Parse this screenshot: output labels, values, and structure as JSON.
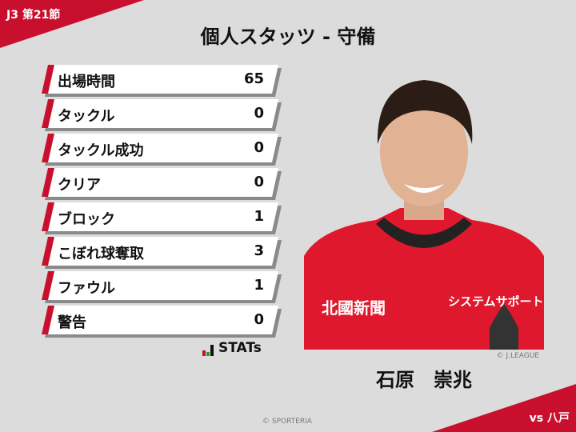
{
  "header": {
    "round": "J3 第21節",
    "title": "個人スタッツ - 守備",
    "opponent": "vs 八戸"
  },
  "stats": [
    {
      "label": "出場時間",
      "value": "65"
    },
    {
      "label": "タックル",
      "value": "0"
    },
    {
      "label": "タックル成功",
      "value": "0"
    },
    {
      "label": "クリア",
      "value": "0"
    },
    {
      "label": "ブロック",
      "value": "1"
    },
    {
      "label": "こぼれ球奪取",
      "value": "3"
    },
    {
      "label": "ファウル",
      "value": "1"
    },
    {
      "label": "警告",
      "value": "0"
    }
  ],
  "logo": {
    "text": "STATs"
  },
  "player": {
    "name": "石原　崇兆",
    "photo_credit": "© J.LEAGUE",
    "jersey_text": [
      "北國新聞",
      "システムサポート"
    ]
  },
  "footer": {
    "copyright": "© SPORTERIA"
  },
  "colors": {
    "accent": "#c8102e",
    "background": "#dcdcdc"
  }
}
